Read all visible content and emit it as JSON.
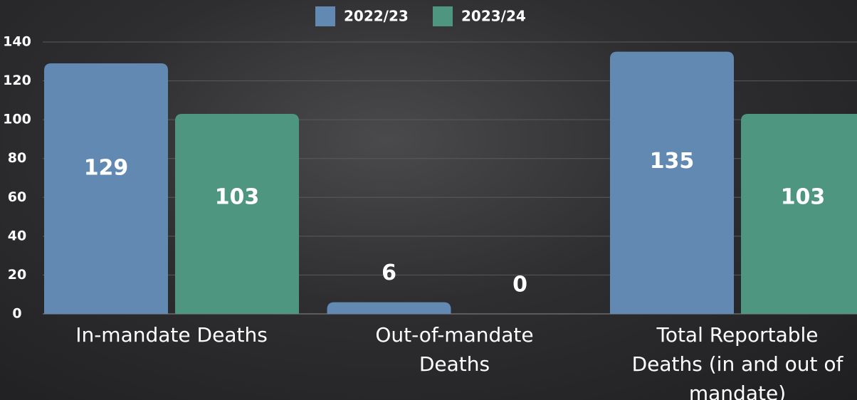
{
  "chart_data": {
    "type": "bar",
    "categories": [
      "In-mandate Deaths",
      "Out-of-mandate Deaths",
      "Total Reportable Deaths (in and out of mandate)"
    ],
    "series": [
      {
        "name": "2022/23",
        "color": "#6289b2",
        "values": [
          129,
          6,
          135
        ]
      },
      {
        "name": "2023/24",
        "color": "#4e9680",
        "values": [
          103,
          0,
          103
        ]
      }
    ],
    "ylim": [
      0,
      140
    ],
    "yticks": [
      0,
      20,
      40,
      60,
      80,
      100,
      120,
      140
    ],
    "grid": true,
    "legend": "top"
  }
}
